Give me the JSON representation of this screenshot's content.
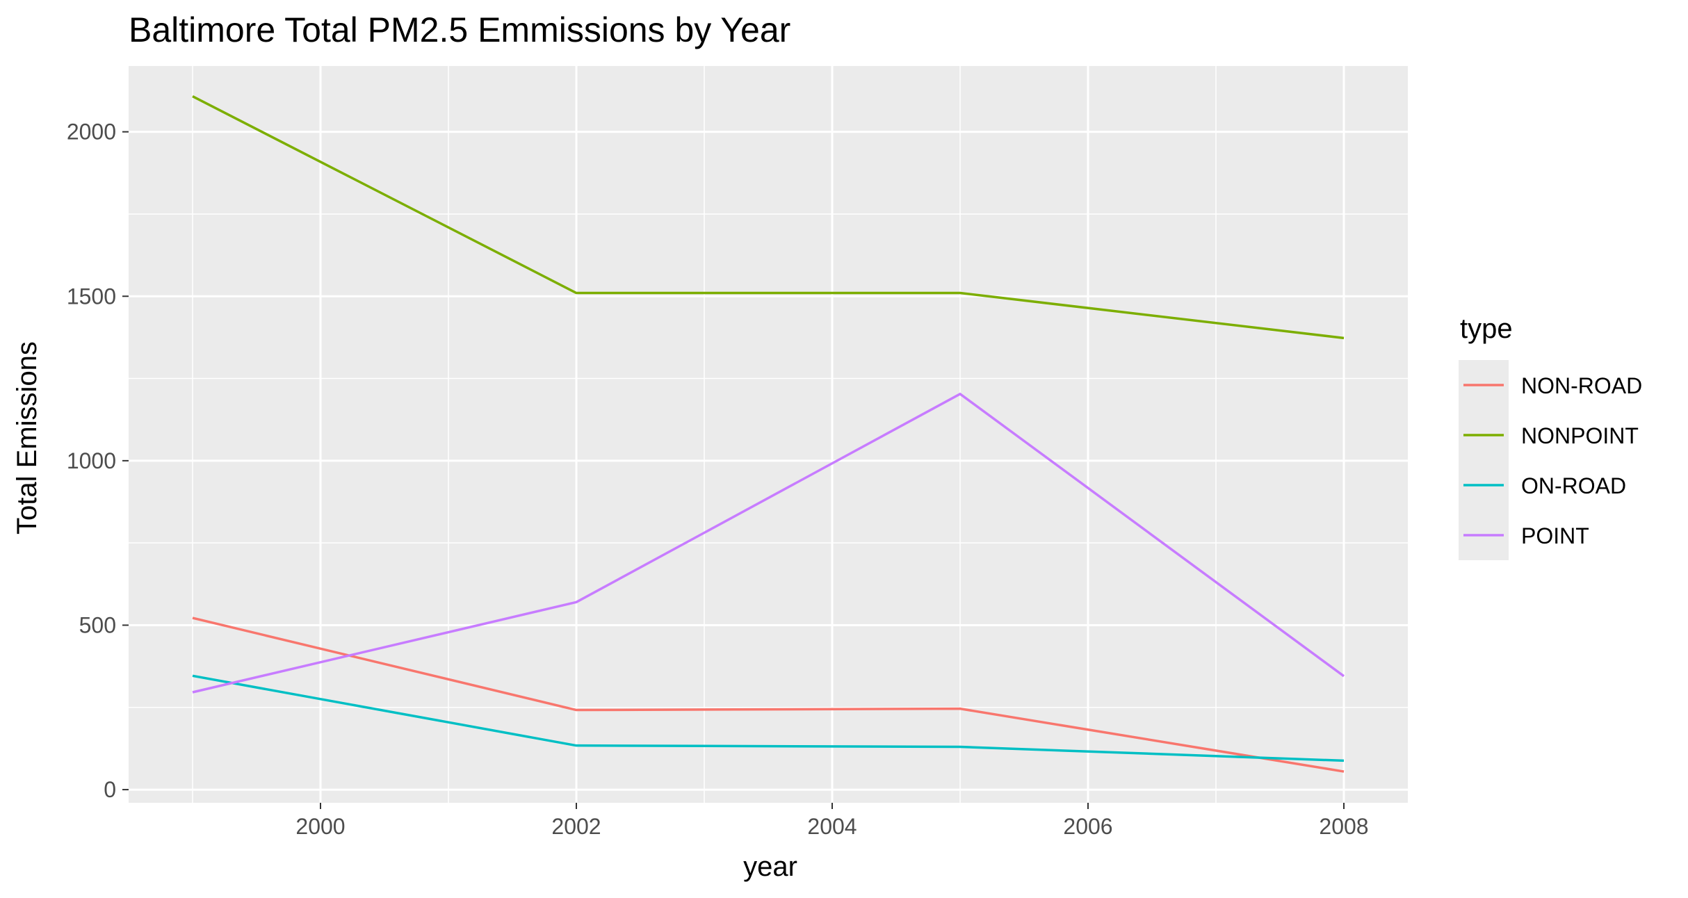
{
  "chart_data": {
    "type": "line",
    "title": "Baltimore Total PM2.5 Emmissions by Year",
    "xlabel": "year",
    "ylabel": "Total Emissions",
    "x": [
      1999,
      2002,
      2005,
      2008
    ],
    "xlim": [
      1998.5,
      2008.5
    ],
    "ylim": [
      -40,
      2200
    ],
    "x_ticks": [
      2000,
      2002,
      2004,
      2006,
      2008
    ],
    "y_ticks": [
      0,
      500,
      1000,
      1500,
      2000
    ],
    "grid": true,
    "background": "#EBEBEB",
    "legend": {
      "title": "type",
      "placement": "right"
    },
    "series": [
      {
        "name": "NON-ROAD",
        "color": "#F8766D",
        "values": [
          522,
          242,
          246,
          55
        ]
      },
      {
        "name": "NONPOINT",
        "color": "#7CAE00",
        "values": [
          2108,
          1510,
          1510,
          1373
        ]
      },
      {
        "name": "ON-ROAD",
        "color": "#00BFC4",
        "values": [
          346,
          134,
          130,
          88
        ]
      },
      {
        "name": "POINT",
        "color": "#C77CFF",
        "values": [
          296,
          570,
          1203,
          345
        ]
      }
    ]
  }
}
